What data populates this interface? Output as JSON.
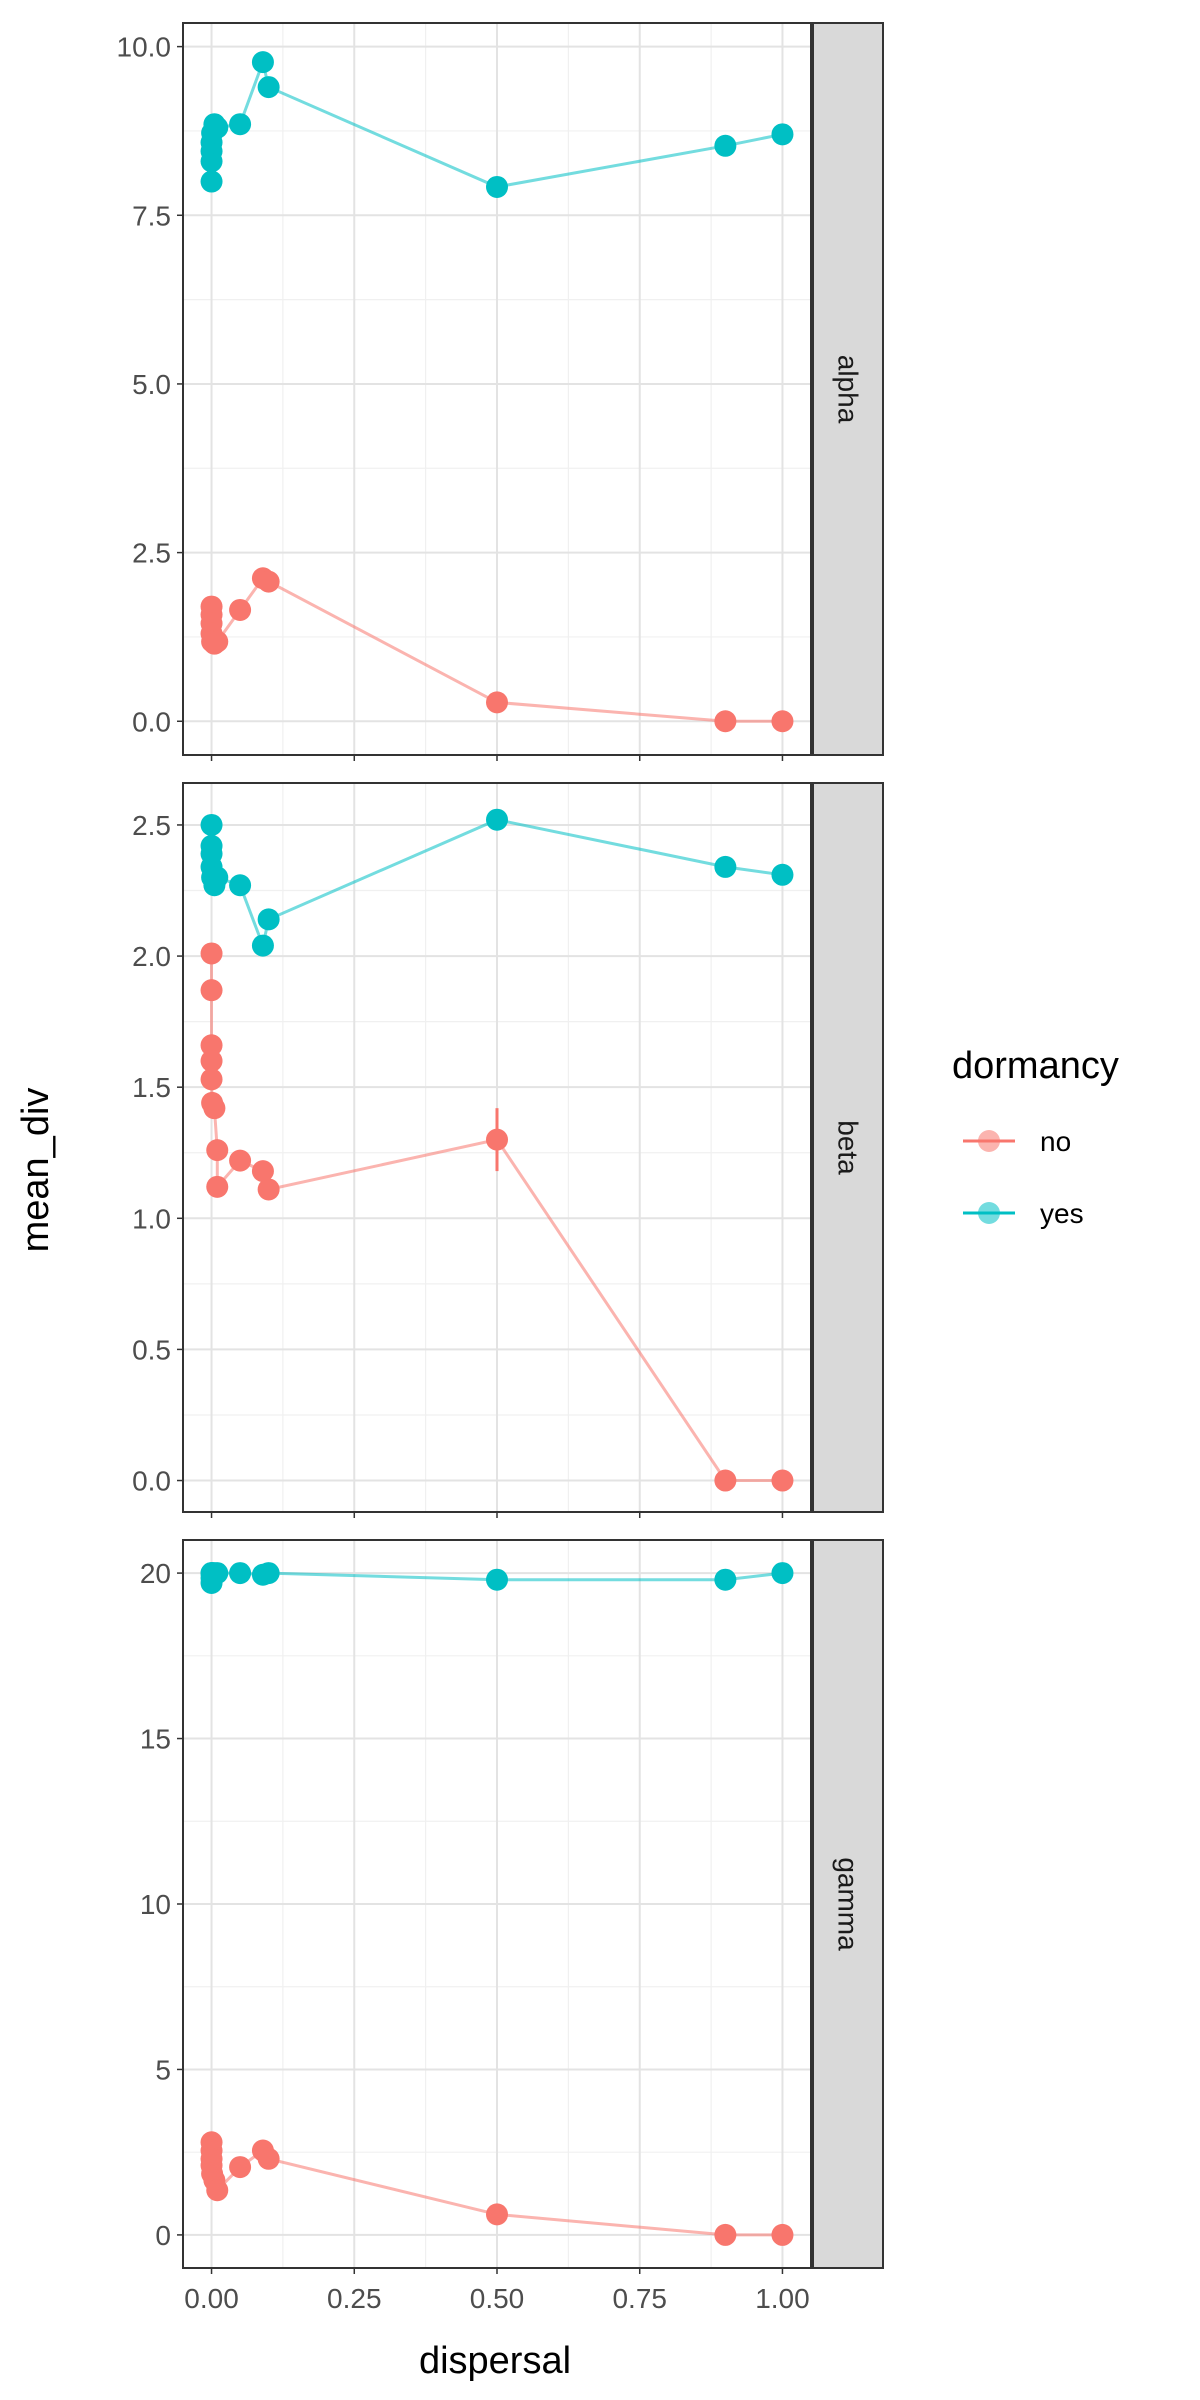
{
  "chart_data": {
    "type": "line",
    "xlabel": "dispersal",
    "ylabel": "mean_div",
    "x_ticks": [
      "0.00",
      "0.25",
      "0.50",
      "0.75",
      "1.00"
    ],
    "x_tick_values": [
      0,
      0.25,
      0.5,
      0.75,
      1.0
    ],
    "xlim": [
      -0.05,
      1.05
    ],
    "grid": true,
    "legend": {
      "title": "dormancy",
      "position": "right",
      "entries": [
        {
          "label": "no",
          "color": "#F8766D"
        },
        {
          "label": "yes",
          "color": "#00BFC4"
        }
      ]
    },
    "facets": [
      {
        "strip": "alpha",
        "ylim": [
          -0.5,
          10.35
        ],
        "y_ticks": [
          "0.0",
          "2.5",
          "5.0",
          "7.5",
          "10.0"
        ],
        "y_tick_values": [
          0,
          2.5,
          5,
          7.5,
          10
        ],
        "series": [
          {
            "name": "no",
            "color": "#F8766D",
            "x": [
              0,
              0,
              0,
              0,
              0.001,
              0.005,
              0.01,
              0.05,
              0.09,
              0.1,
              0.5,
              0.9,
              1.0
            ],
            "y": [
              1.7,
              1.58,
              1.45,
              1.3,
              1.18,
              1.15,
              1.18,
              1.65,
              2.12,
              2.07,
              0.28,
              0.0,
              0.0
            ],
            "error": []
          },
          {
            "name": "yes",
            "color": "#00BFC4",
            "x": [
              0,
              0,
              0,
              0,
              0.001,
              0.005,
              0.01,
              0.05,
              0.09,
              0.1,
              0.5,
              0.9,
              1.0
            ],
            "y": [
              8.0,
              8.3,
              8.45,
              8.58,
              8.72,
              8.85,
              8.8,
              8.85,
              9.77,
              9.4,
              7.92,
              8.53,
              8.7
            ],
            "error": []
          }
        ]
      },
      {
        "strip": "beta",
        "ylim": [
          -0.12,
          2.66
        ],
        "y_ticks": [
          "0.0",
          "0.5",
          "1.0",
          "1.5",
          "2.0",
          "2.5"
        ],
        "y_tick_values": [
          0,
          0.5,
          1.0,
          1.5,
          2.0,
          2.5
        ],
        "series": [
          {
            "name": "no",
            "color": "#F8766D",
            "x": [
              0,
              0,
              0,
              0,
              0,
              0.001,
              0.005,
              0.01,
              0.01,
              0.05,
              0.09,
              0.1,
              0.5,
              0.9,
              1.0
            ],
            "y": [
              2.01,
              1.87,
              1.66,
              1.6,
              1.53,
              1.44,
              1.42,
              1.26,
              1.12,
              1.22,
              1.18,
              1.11,
              1.3,
              0.0,
              0.0
            ],
            "error": [
              0,
              0,
              0,
              0,
              0,
              0,
              0,
              0,
              0,
              0,
              0,
              0,
              0.12,
              0,
              0
            ]
          },
          {
            "name": "yes",
            "color": "#00BFC4",
            "x": [
              0,
              0,
              0,
              0,
              0.001,
              0.005,
              0.01,
              0.05,
              0.09,
              0.1,
              0.5,
              0.9,
              1.0
            ],
            "y": [
              2.5,
              2.42,
              2.39,
              2.34,
              2.3,
              2.27,
              2.3,
              2.27,
              2.04,
              2.14,
              2.52,
              2.34,
              2.31
            ],
            "error": []
          }
        ]
      },
      {
        "strip": "gamma",
        "ylim": [
          -1.0,
          21.0
        ],
        "y_ticks": [
          "0",
          "5",
          "10",
          "15",
          "20"
        ],
        "y_tick_values": [
          0,
          5,
          10,
          15,
          20
        ],
        "series": [
          {
            "name": "no",
            "color": "#F8766D",
            "x": [
              0,
              0,
              0,
              0,
              0.001,
              0.005,
              0.01,
              0.05,
              0.09,
              0.1,
              0.5,
              0.9,
              1.0
            ],
            "y": [
              2.8,
              2.55,
              2.3,
              2.1,
              1.85,
              1.65,
              1.35,
              2.05,
              2.55,
              2.3,
              0.62,
              0.0,
              0.0
            ],
            "error": []
          },
          {
            "name": "yes",
            "color": "#00BFC4",
            "x": [
              0,
              0,
              0,
              0,
              0.001,
              0.005,
              0.01,
              0.05,
              0.09,
              0.1,
              0.5,
              0.9,
              1.0
            ],
            "y": [
              19.7,
              19.85,
              20.0,
              20.0,
              20.0,
              20.0,
              20.0,
              20.0,
              19.95,
              20.0,
              19.8,
              19.8,
              20.0
            ],
            "error": []
          }
        ]
      }
    ]
  }
}
